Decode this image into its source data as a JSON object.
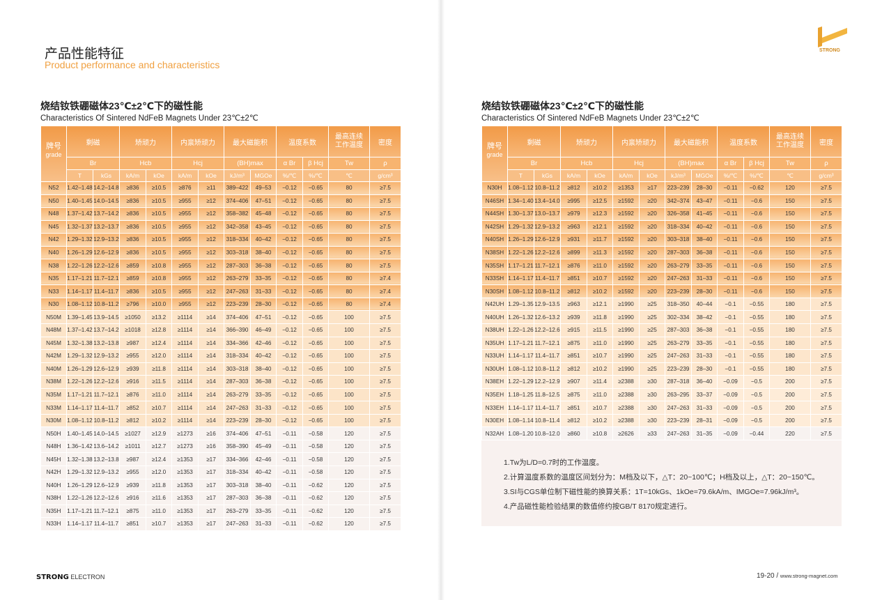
{
  "page_left": {
    "title_cn": "产品性能特征",
    "title_en": "Product performance and characteristics"
  },
  "table_title_cn": "烧结钕铁硼磁体23℃±2℃下的磁性能",
  "table_title_en": "Characteristics Of Sintered NdFeB Magnets Under 23℃±2℃",
  "header": {
    "grade_cn": "牌号",
    "grade_en": "grade",
    "groups": [
      "剩磁",
      "矫顽力",
      "内禀矫顽力",
      "最大磁能积",
      "温度系数",
      "最高连续工作温度",
      "密度"
    ],
    "symbols": [
      "Br",
      "Hcb",
      "Hcj",
      "(BH)max",
      "α Br",
      "β Hcj",
      "Tw",
      "ρ"
    ],
    "units": [
      "T",
      "kGs",
      "kA/m",
      "kOe",
      "kA/m",
      "kOe",
      "kJ/m³",
      "MGOe",
      "%/℃",
      "%/℃",
      "℃",
      "g/cm³"
    ]
  },
  "colors": {
    "accent": "#f5a95c",
    "title_orange": "#f0a040"
  },
  "left_rows": [
    [
      "n",
      "N52",
      "1.42–1.48",
      "14.2–14.8",
      "≥836",
      "≥10.5",
      "≥876",
      "≥11",
      "389–422",
      "49–53",
      "−0.12",
      "−0.65",
      "80",
      "≥7.5"
    ],
    [
      "n",
      "N50",
      "1.40–1.45",
      "14.0–14.5",
      "≥836",
      "≥10.5",
      "≥955",
      "≥12",
      "374–406",
      "47–51",
      "−0.12",
      "−0.65",
      "80",
      "≥7.5"
    ],
    [
      "n",
      "N48",
      "1.37–1.42",
      "13.7–14.2",
      "≥836",
      "≥10.5",
      "≥955",
      "≥12",
      "358–382",
      "45–48",
      "−0.12",
      "−0.65",
      "80",
      "≥7.5"
    ],
    [
      "n",
      "N45",
      "1.32–1.37",
      "13.2–13.7",
      "≥836",
      "≥10.5",
      "≥955",
      "≥12",
      "342–358",
      "43–45",
      "−0.12",
      "−0.65",
      "80",
      "≥7.5"
    ],
    [
      "n",
      "N42",
      "1.29–1.32",
      "12.9–13.2",
      "≥836",
      "≥10.5",
      "≥955",
      "≥12",
      "318–334",
      "40–42",
      "−0.12",
      "−0.65",
      "80",
      "≥7.5"
    ],
    [
      "n",
      "N40",
      "1.26–1.29",
      "12.6–12.9",
      "≥836",
      "≥10.5",
      "≥955",
      "≥12",
      "303–318",
      "38–40",
      "−0.12",
      "−0.65",
      "80",
      "≥7.5"
    ],
    [
      "n",
      "N38",
      "1.22–1.26",
      "12.2–12.6",
      "≥859",
      "≥10.8",
      "≥955",
      "≥12",
      "287–303",
      "36–38",
      "−0.12",
      "−0.65",
      "80",
      "≥7.5"
    ],
    [
      "n",
      "N35",
      "1.17–1.21",
      "11.7–12.1",
      "≥859",
      "≥10.8",
      "≥955",
      "≥12",
      "263–279",
      "33–35",
      "−0.12",
      "−0.65",
      "80",
      "≥7.4"
    ],
    [
      "n",
      "N33",
      "1.14–1.17",
      "11.4–11.7",
      "≥836",
      "≥10.5",
      "≥955",
      "≥12",
      "247–263",
      "31–33",
      "−0.12",
      "−0.65",
      "80",
      "≥7.4"
    ],
    [
      "n",
      "N30",
      "1.08–1.12",
      "10.8–11.2",
      "≥796",
      "≥10.0",
      "≥955",
      "≥12",
      "223–239",
      "28–30",
      "−0.12",
      "−0.65",
      "80",
      "≥7.4"
    ],
    [
      "m",
      "N50M",
      "1.39–1.45",
      "13.9–14.5",
      "≥1050",
      "≥13.2",
      "≥1114",
      "≥14",
      "374–406",
      "47–51",
      "−0.12",
      "−0.65",
      "100",
      "≥7.5"
    ],
    [
      "m",
      "N48M",
      "1.37–1.42",
      "13.7–14.2",
      "≥1018",
      "≥12.8",
      "≥1114",
      "≥14",
      "366–390",
      "46–49",
      "−0.12",
      "−0.65",
      "100",
      "≥7.5"
    ],
    [
      "m",
      "N45M",
      "1.32–1.38",
      "13.2–13.8",
      "≥987",
      "≥12.4",
      "≥1114",
      "≥14",
      "334–366",
      "42–46",
      "−0.12",
      "−0.65",
      "100",
      "≥7.5"
    ],
    [
      "m",
      "N42M",
      "1.29–1.32",
      "12.9–13.2",
      "≥955",
      "≥12.0",
      "≥1114",
      "≥14",
      "318–334",
      "40–42",
      "−0.12",
      "−0.65",
      "100",
      "≥7.5"
    ],
    [
      "m",
      "N40M",
      "1.26–1.29",
      "12.6–12.9",
      "≥939",
      "≥11.8",
      "≥1114",
      "≥14",
      "303–318",
      "38–40",
      "−0.12",
      "−0.65",
      "100",
      "≥7.5"
    ],
    [
      "m",
      "N38M",
      "1.22–1.26",
      "12.2–12.6",
      "≥916",
      "≥11.5",
      "≥1114",
      "≥14",
      "287–303",
      "36–38",
      "−0.12",
      "−0.65",
      "100",
      "≥7.5"
    ],
    [
      "m",
      "N35M",
      "1.17–1.21",
      "11.7–12.1",
      "≥876",
      "≥11.0",
      "≥1114",
      "≥14",
      "263–279",
      "33–35",
      "−0.12",
      "−0.65",
      "100",
      "≥7.5"
    ],
    [
      "m",
      "N33M",
      "1.14–1.17",
      "11.4–11.7",
      "≥852",
      "≥10.7",
      "≥1114",
      "≥14",
      "247–263",
      "31–33",
      "−0.12",
      "−0.65",
      "100",
      "≥7.5"
    ],
    [
      "m",
      "N30M",
      "1.08–1.12",
      "10.8–11.2",
      "≥812",
      "≥10.2",
      "≥1114",
      "≥14",
      "223–239",
      "28–30",
      "−0.12",
      "−0.65",
      "100",
      "≥7.5"
    ],
    [
      "h",
      "N50H",
      "1.40–1.45",
      "14.0–14.5",
      "≥1027",
      "≥12.9",
      "≥1273",
      "≥16",
      "374–406",
      "47–51",
      "−0.11",
      "−0.58",
      "120",
      "≥7.5"
    ],
    [
      "h",
      "N48H",
      "1.36–1.42",
      "13.6–14.2",
      "≥1011",
      "≥12.7",
      "≥1273",
      "≥16",
      "358–390",
      "45–49",
      "−0.11",
      "−0.58",
      "120",
      "≥7.5"
    ],
    [
      "h",
      "N45H",
      "1.32–1.38",
      "13.2–13.8",
      "≥987",
      "≥12.4",
      "≥1353",
      "≥17",
      "334–366",
      "42–46",
      "−0.11",
      "−0.58",
      "120",
      "≥7.5"
    ],
    [
      "h",
      "N42H",
      "1.29–1.32",
      "12.9–13.2",
      "≥955",
      "≥12.0",
      "≥1353",
      "≥17",
      "318–334",
      "40–42",
      "−0.11",
      "−0.58",
      "120",
      "≥7.5"
    ],
    [
      "h",
      "N40H",
      "1.26–1.29",
      "12.6–12.9",
      "≥939",
      "≥11.8",
      "≥1353",
      "≥17",
      "303–318",
      "38–40",
      "−0.11",
      "−0.62",
      "120",
      "≥7.5"
    ],
    [
      "h",
      "N38H",
      "1.22–1.26",
      "12.2–12.6",
      "≥916",
      "≥11.6",
      "≥1353",
      "≥17",
      "287–303",
      "36–38",
      "−0.11",
      "−0.62",
      "120",
      "≥7.5"
    ],
    [
      "h",
      "N35H",
      "1.17–1.21",
      "11.7–12.1",
      "≥875",
      "≥11.0",
      "≥1353",
      "≥17",
      "263–279",
      "33–35",
      "−0.11",
      "−0.62",
      "120",
      "≥7.5"
    ],
    [
      "h",
      "N33H",
      "1.14–1.17",
      "11.4–11.7",
      "≥851",
      "≥10.7",
      "≥1353",
      "≥17",
      "247–263",
      "31–33",
      "−0.11",
      "−0.62",
      "120",
      "≥7.5"
    ]
  ],
  "right_rows": [
    [
      "n",
      "N30H",
      "1.08–1.12",
      "10.8–11.2",
      "≥812",
      "≥10.2",
      "≥1353",
      "≥17",
      "223–239",
      "28–30",
      "−0.11",
      "−0.62",
      "120",
      "≥7.5"
    ],
    [
      "n",
      "N46SH",
      "1.34–1.40",
      "13.4–14.0",
      "≥995",
      "≥12.5",
      "≥1592",
      "≥20",
      "342–374",
      "43–47",
      "−0.11",
      "−0.6",
      "150",
      "≥7.5"
    ],
    [
      "n",
      "N44SH",
      "1.30–1.37",
      "13.0–13.7",
      "≥979",
      "≥12.3",
      "≥1592",
      "≥20",
      "326–358",
      "41–45",
      "−0.11",
      "−0.6",
      "150",
      "≥7.5"
    ],
    [
      "n",
      "N42SH",
      "1.29–1.32",
      "12.9–13.2",
      "≥963",
      "≥12.1",
      "≥1592",
      "≥20",
      "318–334",
      "40–42",
      "−0.11",
      "−0.6",
      "150",
      "≥7.5"
    ],
    [
      "n",
      "N40SH",
      "1.26–1.29",
      "12.6–12.9",
      "≥931",
      "≥11.7",
      "≥1592",
      "≥20",
      "303–318",
      "38–40",
      "−0.11",
      "−0.6",
      "150",
      "≥7.5"
    ],
    [
      "n",
      "N38SH",
      "1.22–1.26",
      "12.2–12.6",
      "≥899",
      "≥11.3",
      "≥1592",
      "≥20",
      "287–303",
      "36–38",
      "−0.11",
      "−0.6",
      "150",
      "≥7.5"
    ],
    [
      "n",
      "N35SH",
      "1.17–1.21",
      "11.7–12.1",
      "≥876",
      "≥11.0",
      "≥1592",
      "≥20",
      "263–279",
      "33–35",
      "−0.11",
      "−0.6",
      "150",
      "≥7.5"
    ],
    [
      "n",
      "N33SH",
      "1.14–1.17",
      "11.4–11.7",
      "≥851",
      "≥10.7",
      "≥1592",
      "≥20",
      "247–263",
      "31–33",
      "−0.11",
      "−0.6",
      "150",
      "≥7.5"
    ],
    [
      "n",
      "N30SH",
      "1.08–1.12",
      "10.8–11.2",
      "≥812",
      "≥10.2",
      "≥1592",
      "≥20",
      "223–239",
      "28–30",
      "−0.11",
      "−0.6",
      "150",
      "≥7.5"
    ],
    [
      "uh",
      "N42UH",
      "1.29–1.35",
      "12.9–13.5",
      "≥963",
      "≥12.1",
      "≥1990",
      "≥25",
      "318–350",
      "40–44",
      "−0.1",
      "−0.55",
      "180",
      "≥7.5"
    ],
    [
      "uh",
      "N40UH",
      "1.26–1.32",
      "12.6–13.2",
      "≥939",
      "≥11.8",
      "≥1990",
      "≥25",
      "302–334",
      "38–42",
      "−0.1",
      "−0.55",
      "180",
      "≥7.5"
    ],
    [
      "uh",
      "N38UH",
      "1.22–1.26",
      "12.2–12.6",
      "≥915",
      "≥11.5",
      "≥1990",
      "≥25",
      "287–303",
      "36–38",
      "−0.1",
      "−0.55",
      "180",
      "≥7.5"
    ],
    [
      "uh",
      "N35UH",
      "1.17–1.21",
      "11.7–12.1",
      "≥875",
      "≥11.0",
      "≥1990",
      "≥25",
      "263–279",
      "33–35",
      "−0.1",
      "−0.55",
      "180",
      "≥7.5"
    ],
    [
      "uh",
      "N33UH",
      "1.14–1.17",
      "11.4–11.7",
      "≥851",
      "≥10.7",
      "≥1990",
      "≥25",
      "247–263",
      "31–33",
      "−0.1",
      "−0.55",
      "180",
      "≥7.5"
    ],
    [
      "uh",
      "N30UH",
      "1.08–1.12",
      "10.8–11.2",
      "≥812",
      "≥10.2",
      "≥1990",
      "≥25",
      "223–239",
      "28–30",
      "−0.1",
      "−0.55",
      "180",
      "≥7.5"
    ],
    [
      "eh",
      "N38EH",
      "1.22–1.29",
      "12.2–12.9",
      "≥907",
      "≥11.4",
      "≥2388",
      "≥30",
      "287–318",
      "36–40",
      "−0.09",
      "−0.5",
      "200",
      "≥7.5"
    ],
    [
      "eh",
      "N35EH",
      "1.18–1.25",
      "11.8–12.5",
      "≥875",
      "≥11.0",
      "≥2388",
      "≥30",
      "263–295",
      "33–37",
      "−0.09",
      "−0.5",
      "200",
      "≥7.5"
    ],
    [
      "eh",
      "N33EH",
      "1.14–1.17",
      "11.4–11.7",
      "≥851",
      "≥10.7",
      "≥2388",
      "≥30",
      "247–263",
      "31–33",
      "−0.09",
      "−0.5",
      "200",
      "≥7.5"
    ],
    [
      "eh",
      "N30EH",
      "1.08–1.14",
      "10.8–11.4",
      "≥812",
      "≥10.2",
      "≥2388",
      "≥30",
      "223–239",
      "28–31",
      "−0.09",
      "−0.5",
      "200",
      "≥7.5"
    ],
    [
      "ah",
      "N32AH",
      "1.08–1.20",
      "10.8–12.0",
      "≥860",
      "≥10.8",
      "≥2626",
      "≥33",
      "247–263",
      "31–35",
      "−0.09",
      "−0.44",
      "220",
      "≥7.5"
    ]
  ],
  "notes": [
    "1.Tw为L/D=0.7时的工作温度。",
    "2.计算温度系数的温度区间划分为：M档及以下，△T：20~100℃；H档及以上，△T：20~150℃。",
    "3.SI与CGS单位制下磁性能的换算关系：1T=10kGs、1kOe=79.6kA/m、IMGOe=7.96kJ/m³。",
    "4.产品磁性能检验结果的数值修约按GB/T 8170规定进行。"
  ],
  "logo_text": "STRONG",
  "footer": {
    "brand": "STRONG",
    "brand_sub": "ELECTRON",
    "page_numbers": "19-20 /",
    "url": "www.strong-magnet.com"
  }
}
